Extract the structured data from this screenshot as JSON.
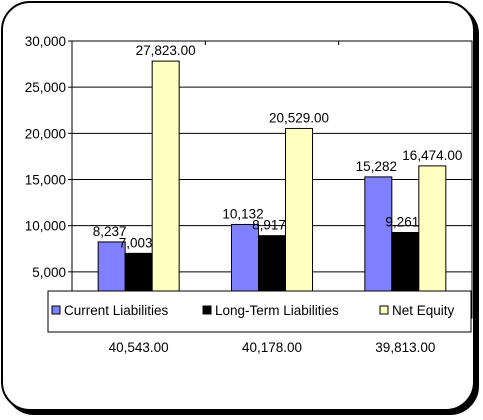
{
  "chart_data": {
    "type": "bar",
    "categories": [
      "40,543.00",
      "40,178.00",
      "39,813.00"
    ],
    "series": [
      {
        "name": "Current Liabilities",
        "values": [
          8237,
          10132,
          15282
        ],
        "labels": [
          "8,237",
          "10,132",
          "15,282"
        ],
        "color": "#8080ff"
      },
      {
        "name": "Long-Term Liabilities",
        "values": [
          7003,
          8917,
          9261
        ],
        "labels": [
          "7,003",
          "8,917",
          "9,261"
        ],
        "color": "#000000"
      },
      {
        "name": "Net Equity",
        "values": [
          27823,
          20529,
          16474
        ],
        "labels": [
          "27,823.00",
          "20,529.00",
          "16,474.00"
        ],
        "color": "#ffffc0"
      }
    ],
    "yticks": [
      "30,000",
      "25,000",
      "20,000",
      "15,000",
      "10,000",
      "5,000"
    ],
    "ylim": [
      0,
      30000
    ],
    "grid": true,
    "legend_position": "bottom-overlapping-plot",
    "plot_background": "#ffffff",
    "border_color": "#000000"
  }
}
